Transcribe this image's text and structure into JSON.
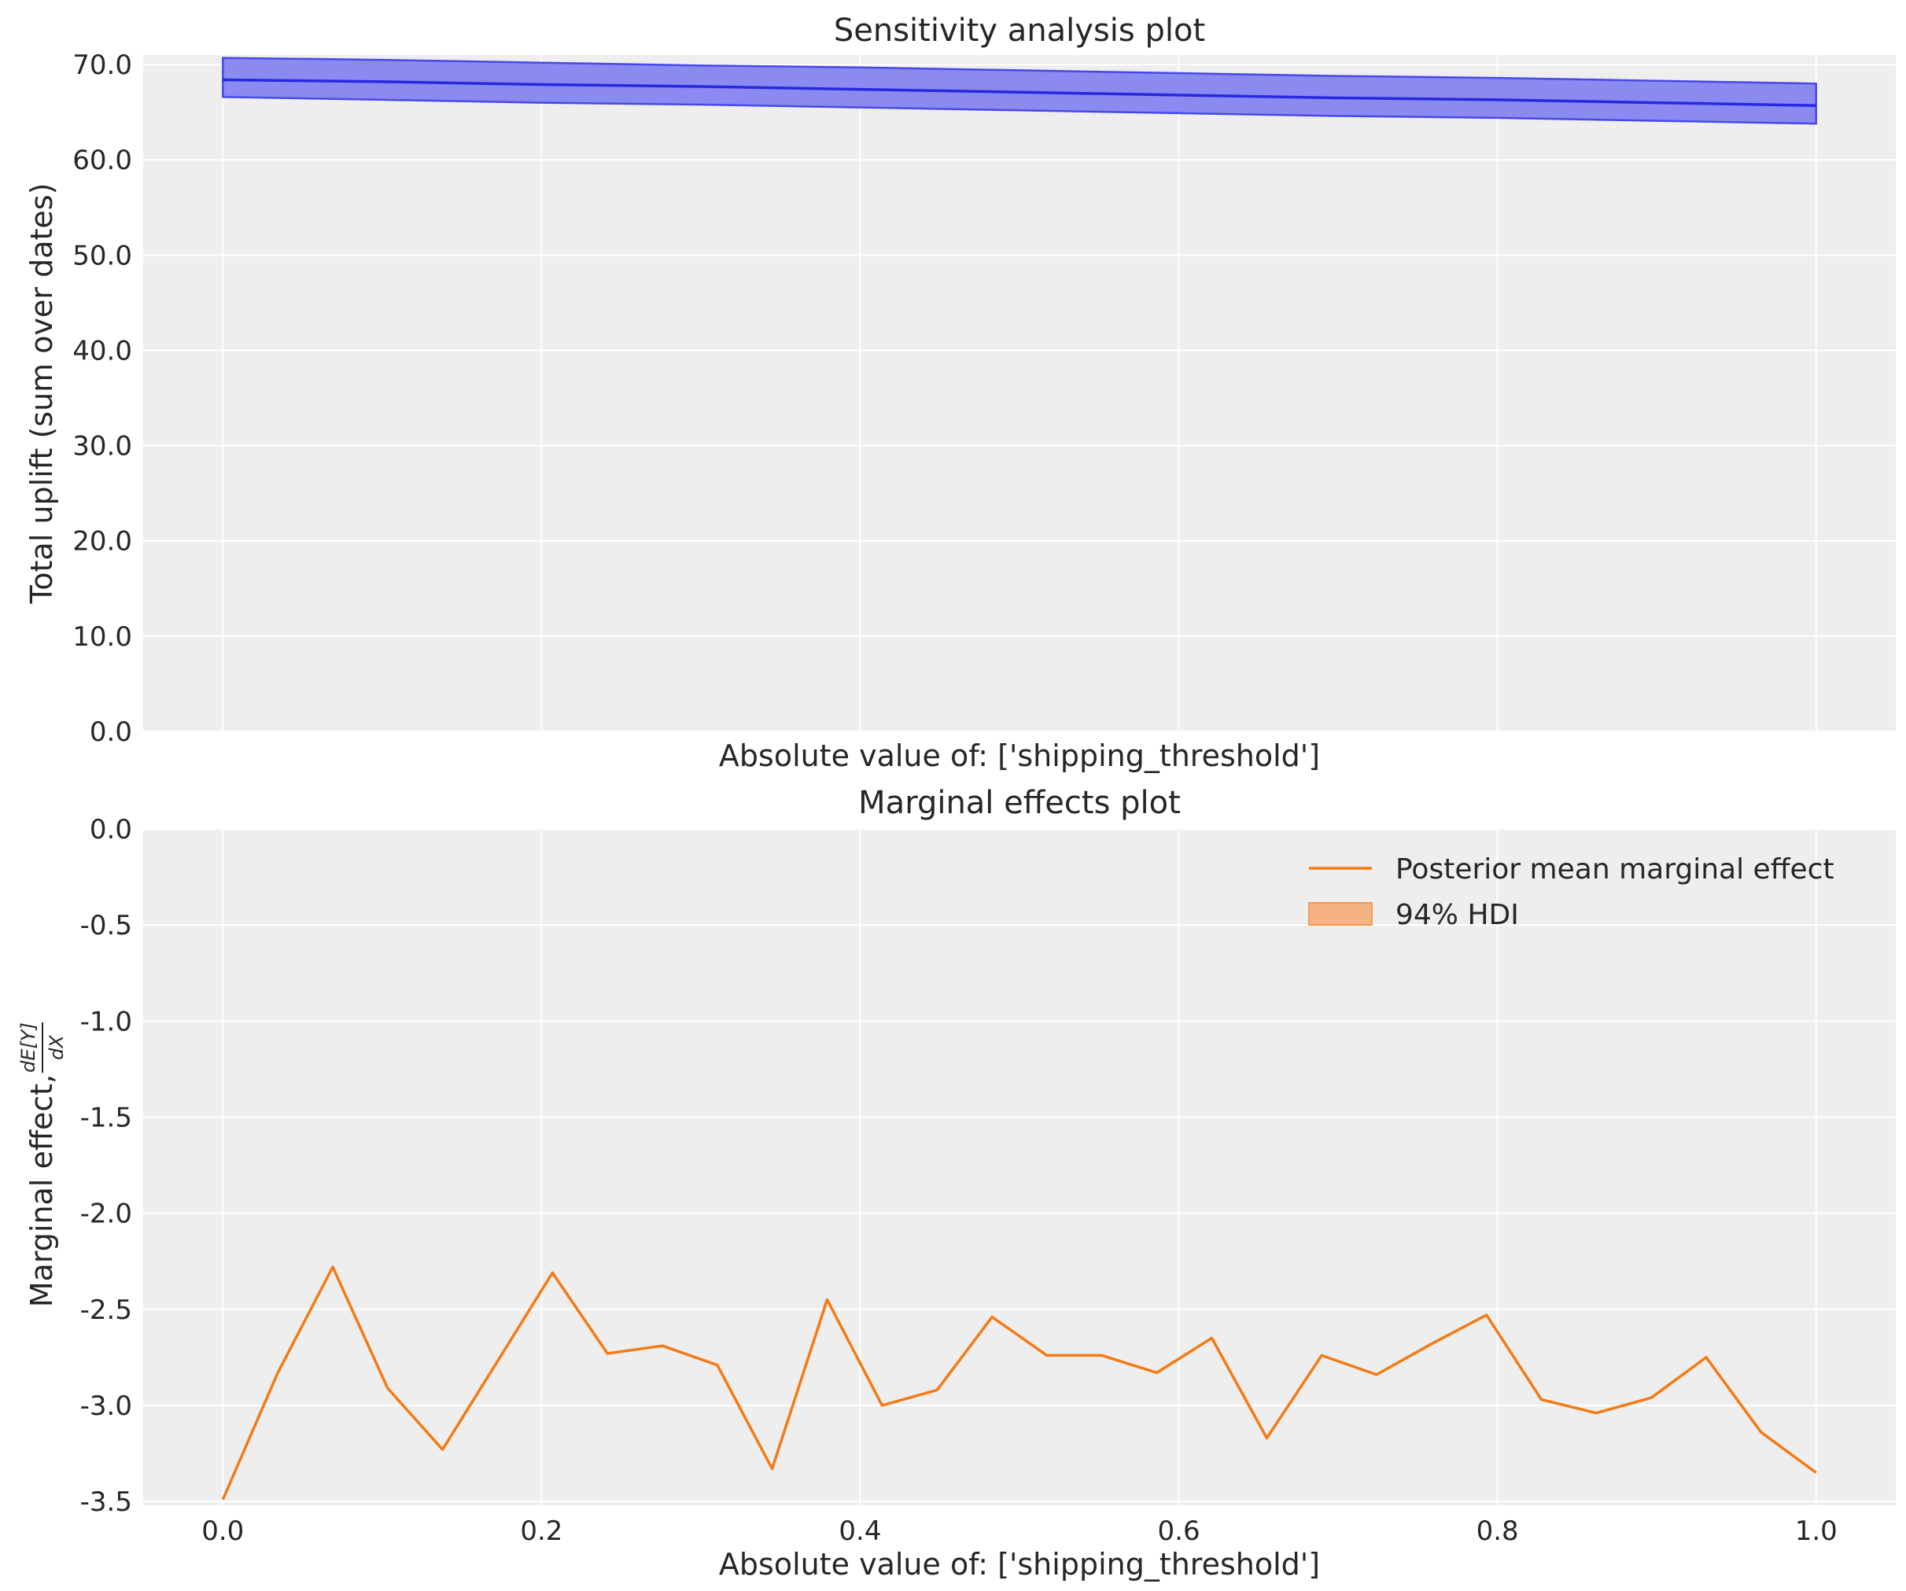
{
  "chart_data": [
    {
      "type": "area",
      "title": "Sensitivity analysis plot",
      "xlabel": "Absolute value of: ['shipping_threshold']",
      "ylabel": "Total uplift (sum over dates)",
      "xlim": [
        -0.05,
        1.05
      ],
      "ylim": [
        0,
        71
      ],
      "yticks": [
        "0.0",
        "10.0",
        "20.0",
        "30.0",
        "40.0",
        "50.0",
        "60.0",
        "70.0"
      ],
      "x": [
        0.0,
        0.1,
        0.2,
        0.3,
        0.4,
        0.5,
        0.6,
        0.7,
        0.8,
        0.9,
        1.0
      ],
      "series": [
        {
          "mean": [
            68.4,
            68.2,
            67.9,
            67.7,
            67.4,
            67.1,
            66.8,
            66.5,
            66.3,
            66.0,
            65.7
          ],
          "lower": [
            66.6,
            66.3,
            66.0,
            65.8,
            65.5,
            65.2,
            64.9,
            64.6,
            64.4,
            64.1,
            63.8
          ],
          "upper": [
            70.7,
            70.5,
            70.2,
            69.9,
            69.7,
            69.4,
            69.1,
            68.8,
            68.6,
            68.3,
            68.0
          ]
        }
      ],
      "colors": {
        "line": "#2828e0",
        "band": "#8a8af0",
        "band_edge": "#4848e8"
      },
      "grid": true
    },
    {
      "type": "line",
      "title": "Marginal effects plot",
      "xlabel": "Absolute value of: ['shipping_threshold']",
      "ylabel": "Marginal effect,",
      "ylabel_math": {
        "num": "dE[Y]",
        "den": "dX"
      },
      "xlim": [
        -0.05,
        1.05
      ],
      "ylim": [
        -3.52,
        0.0
      ],
      "xticks": [
        "0.0",
        "0.2",
        "0.4",
        "0.6",
        "0.8",
        "1.0"
      ],
      "yticks": [
        "-3.5",
        "-3.0",
        "-2.5",
        "-2.0",
        "-1.5",
        "-1.0",
        "-0.5",
        "0.0"
      ],
      "x": [
        0.0,
        0.0345,
        0.069,
        0.1034,
        0.1379,
        0.1724,
        0.2069,
        0.2414,
        0.2759,
        0.3103,
        0.3448,
        0.3793,
        0.4138,
        0.4483,
        0.4828,
        0.5172,
        0.5517,
        0.5862,
        0.6207,
        0.6552,
        0.6897,
        0.7241,
        0.7586,
        0.7931,
        0.8276,
        0.8621,
        0.8966,
        0.931,
        0.9655,
        1.0
      ],
      "series": [
        {
          "name": "Posterior mean marginal effect",
          "values": [
            -3.49,
            -2.83,
            -2.28,
            -2.91,
            -3.23,
            -2.77,
            -2.31,
            -2.73,
            -2.69,
            -2.79,
            -3.33,
            -2.45,
            -3.0,
            -2.92,
            -2.54,
            -2.74,
            -2.74,
            -2.83,
            -2.65,
            -3.17,
            -2.74,
            -2.84,
            -2.68,
            -2.53,
            -2.97,
            -3.04,
            -2.96,
            -2.75,
            -3.14,
            -3.35
          ]
        }
      ],
      "legend": {
        "placement": "top-right",
        "entries": [
          "Posterior mean marginal effect",
          "94% HDI"
        ]
      },
      "colors": {
        "line": "#f57a14",
        "band": "#f5b283",
        "band_edge": "#f59a50"
      },
      "grid": true
    }
  ]
}
